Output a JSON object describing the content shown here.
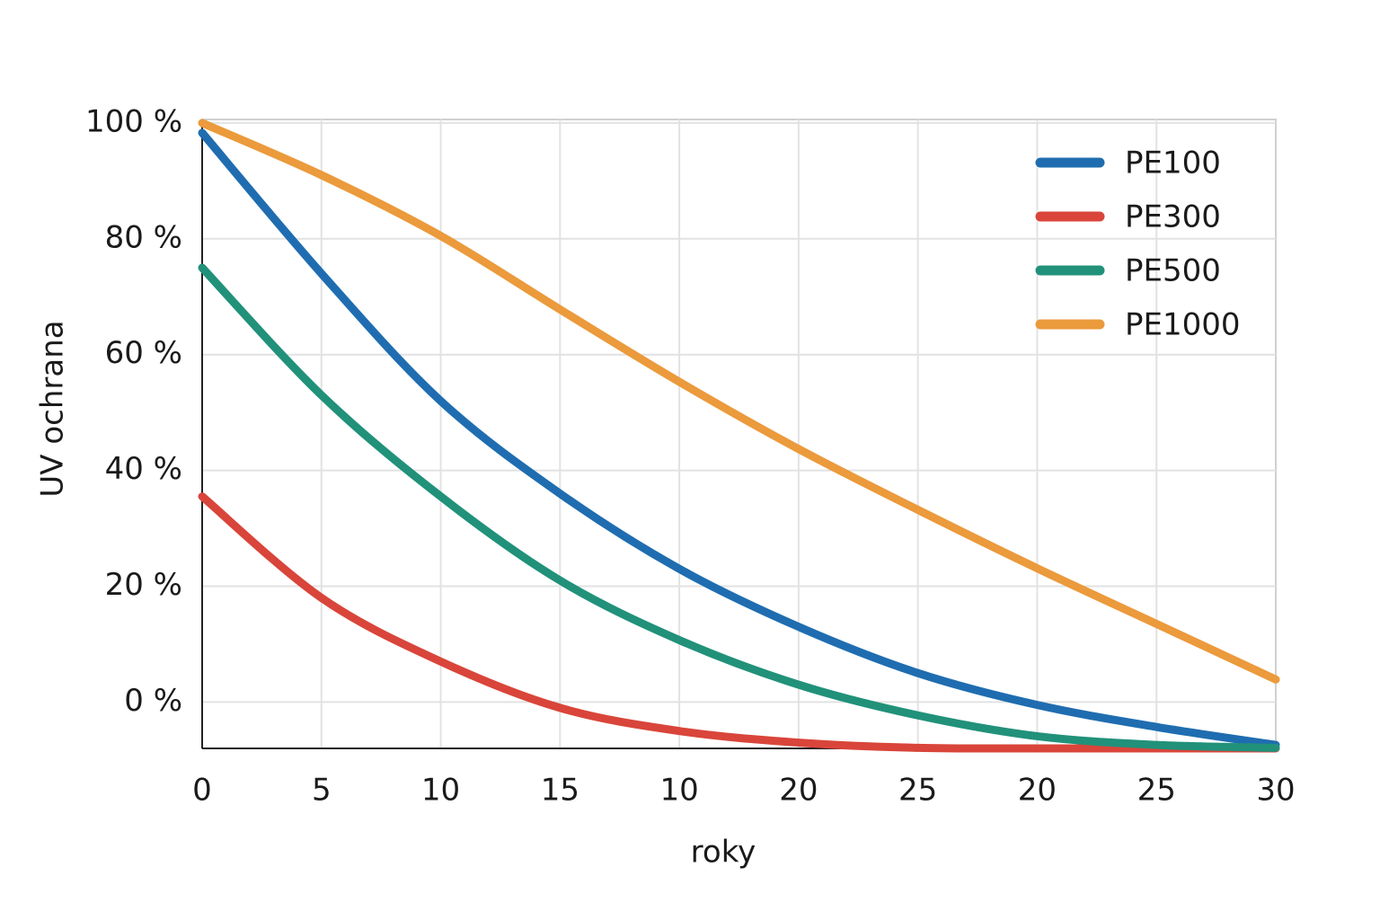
{
  "chart_data": {
    "type": "line",
    "xlabel": "roky",
    "ylabel": "UV ochrana",
    "categories": [
      "0",
      "5",
      "10",
      "15",
      "10",
      "20",
      "25",
      "20",
      "25",
      "30"
    ],
    "series": [
      {
        "name": "PE100",
        "color": "#1f6db0",
        "values": [
          98.3,
          74,
          52,
          36,
          23,
          13,
          5,
          -0.5,
          -4.3,
          -7.4
        ]
      },
      {
        "name": "PE300",
        "color": "#d9453a",
        "values": [
          35.5,
          18,
          7,
          -1,
          -5,
          -7,
          -7.9,
          -8,
          -8,
          -8
        ]
      },
      {
        "name": "PE500",
        "color": "#21917a",
        "values": [
          75,
          53,
          35.5,
          21,
          10.7,
          3,
          -2.3,
          -5.9,
          -7.4,
          -7.9
        ]
      },
      {
        "name": "PE1000",
        "color": "#eb9a3c",
        "values": [
          100,
          91,
          80.5,
          67.8,
          55.3,
          43.7,
          33.2,
          23.1,
          13.5,
          3.9
        ]
      }
    ],
    "ylim": [
      -8,
      100.6
    ],
    "yticks": [
      {
        "value": 0,
        "label": "0 %"
      },
      {
        "value": 20,
        "label": "20 %"
      },
      {
        "value": 40,
        "label": "40 %"
      },
      {
        "value": 60,
        "label": "60 %"
      },
      {
        "value": 80,
        "label": "80 %"
      },
      {
        "value": 100,
        "label": "100 %"
      }
    ],
    "grid": true,
    "legend": "upper right"
  }
}
